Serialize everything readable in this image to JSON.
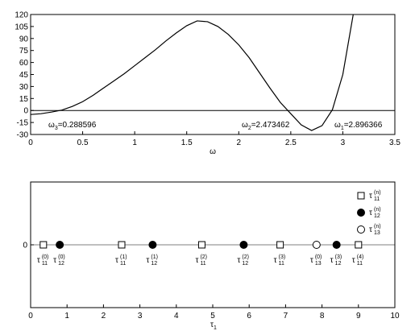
{
  "chart_data": [
    {
      "type": "line",
      "x": [
        0,
        0.1,
        0.2,
        0.3,
        0.4,
        0.5,
        0.6,
        0.7,
        0.8,
        0.9,
        1.0,
        1.1,
        1.2,
        1.3,
        1.4,
        1.5,
        1.6,
        1.7,
        1.8,
        1.9,
        2.0,
        2.1,
        2.2,
        2.3,
        2.4,
        2.5,
        2.6,
        2.7,
        2.8,
        2.9,
        3.0,
        3.1
      ],
      "values": [
        -5,
        -4,
        -2,
        0.5,
        5,
        11,
        19,
        28,
        37,
        46,
        56,
        66,
        76,
        87,
        97,
        106,
        112,
        111,
        105,
        95,
        82,
        66,
        47,
        28,
        10,
        -4,
        -18,
        -25,
        -19,
        1,
        45,
        120
      ],
      "color": "#000000",
      "xlabel": "ω",
      "xlim": [
        0,
        3.5
      ],
      "xticks": [
        0,
        0.5,
        1,
        1.5,
        2,
        2.5,
        3,
        3.5
      ],
      "ylim": [
        -30,
        120
      ],
      "yticks": [
        -30,
        -15,
        0,
        15,
        30,
        45,
        60,
        75,
        90,
        105,
        120
      ],
      "annotations": [
        {
          "symbol": "ω",
          "sub": "3",
          "text": "=0.288596"
        },
        {
          "symbol": "ω",
          "sub": "2",
          "text": "=2.473462"
        },
        {
          "symbol": "ω",
          "sub": "1",
          "text": "=2.896366"
        }
      ]
    },
    {
      "type": "scatter",
      "xlabel": {
        "symbol": "τ",
        "sub": "1"
      },
      "xlim": [
        0,
        10
      ],
      "xticks": [
        0,
        1,
        2,
        3,
        4,
        5,
        6,
        7,
        8,
        9,
        10
      ],
      "ylim": [
        -1,
        1
      ],
      "yticks": [
        0
      ],
      "legend": "upper right",
      "series": [
        {
          "name": {
            "symbol": "τ",
            "sub": "11",
            "sup": "(n)"
          },
          "marker": "square",
          "filled": false,
          "color": "#000000",
          "x": [
            0.35,
            2.5,
            4.7,
            6.85,
            9.0
          ],
          "values": [
            0,
            0,
            0,
            0,
            0
          ],
          "point_labels": [
            {
              "symbol": "τ",
              "sub": "11",
              "sup": "(0)"
            },
            {
              "symbol": "τ",
              "sub": "11",
              "sup": "(1)"
            },
            {
              "symbol": "τ",
              "sub": "11",
              "sup": "(2)"
            },
            {
              "symbol": "τ",
              "sub": "11",
              "sup": "(3)"
            },
            {
              "symbol": "τ",
              "sub": "11",
              "sup": "(4)"
            }
          ]
        },
        {
          "name": {
            "symbol": "τ",
            "sub": "12",
            "sup": "(n)"
          },
          "marker": "circle",
          "filled": true,
          "color": "#000000",
          "x": [
            0.8,
            3.35,
            5.85,
            8.4
          ],
          "values": [
            0,
            0,
            0,
            0
          ],
          "point_labels": [
            {
              "symbol": "τ",
              "sub": "12",
              "sup": "(0)"
            },
            {
              "symbol": "τ",
              "sub": "12",
              "sup": "(1)"
            },
            {
              "symbol": "τ",
              "sub": "12",
              "sup": "(2)"
            },
            {
              "symbol": "τ",
              "sub": "12",
              "sup": "(3)"
            }
          ]
        },
        {
          "name": {
            "symbol": "τ",
            "sub": "13",
            "sup": "(n)"
          },
          "marker": "circle",
          "filled": false,
          "color": "#000000",
          "x": [
            7.85
          ],
          "values": [
            0
          ],
          "point_labels": [
            {
              "symbol": "τ",
              "sub": "13",
              "sup": "(0)"
            }
          ]
        }
      ]
    }
  ]
}
